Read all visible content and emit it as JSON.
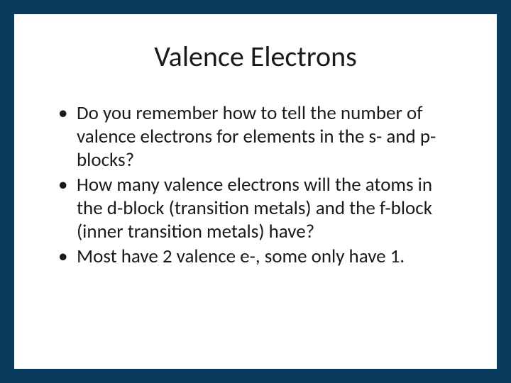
{
  "slide": {
    "background_color": "#0a3a5c",
    "card_color": "#ffffff",
    "text_color": "#1a1a1a",
    "title": "Valence Electrons",
    "title_fontsize": 40,
    "body_fontsize": 27,
    "bullets": [
      "Do you remember how to tell the number of valence electrons for elements in the s- and p-blocks?",
      "How many valence electrons will the atoms in the d-block (transition metals) and the f-block (inner transition metals) have?",
      "Most have 2 valence e-, some only have 1."
    ]
  }
}
